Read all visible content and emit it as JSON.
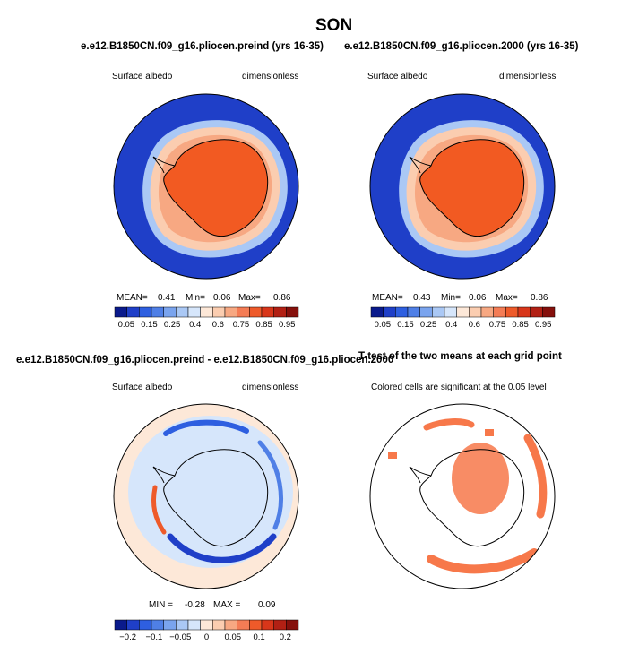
{
  "figure": {
    "title": "SON"
  },
  "panels": {
    "p1": {
      "title": "e.e12.B1850CN.f09_g16.pliocen.preind (yrs 16-35)",
      "left_label": "Surface albedo",
      "right_label": "dimensionless",
      "mean_label": "MEAN=",
      "mean_value": "0.41",
      "min_label": "Min=",
      "min_value": "0.06",
      "max_label": "Max=",
      "max_value": "0.86"
    },
    "p2": {
      "title": "e.e12.B1850CN.f09_g16.pliocen.2000 (yrs 16-35)",
      "left_label": "Surface albedo",
      "right_label": "dimensionless",
      "mean_label": "MEAN=",
      "mean_value": "0.43",
      "min_label": "Min=",
      "min_value": "0.06",
      "max_label": "Max=",
      "max_value": "0.86"
    },
    "p3": {
      "title": "e.e12.B1850CN.f09_g16.pliocen.preind - e.e12.B1850CN.f09_g16.pliocen.2000",
      "left_label": "Surface albedo",
      "right_label": "dimensionless",
      "min_label": "MIN =",
      "min_value": "-0.28",
      "max_label": "MAX =",
      "max_value": "0.09"
    },
    "p4": {
      "title": "T-test of the two means at each grid point",
      "subtitle": "Colored cells are significant at the 0.05 level"
    }
  },
  "colorbars": {
    "abs": {
      "colors": [
        "#0a1a8c",
        "#1f3fc8",
        "#2e5fe0",
        "#4f7fe6",
        "#7aa4ee",
        "#aac8f5",
        "#d6e6fb",
        "#fde8d8",
        "#fbcdb0",
        "#f7a882",
        "#f47c55",
        "#ee5a2a",
        "#d8361a",
        "#b22014",
        "#85100c"
      ],
      "labels": [
        "0.05",
        "0.15",
        "0.25",
        "0.4",
        "0.6",
        "0.75",
        "0.85",
        "0.95"
      ]
    },
    "diff": {
      "colors": [
        "#0a1a8c",
        "#1f3fc8",
        "#2e5fe0",
        "#4f7fe6",
        "#7aa4ee",
        "#aac8f5",
        "#d6e6fb",
        "#fde8d8",
        "#fbcdb0",
        "#f7a882",
        "#f47c55",
        "#ee5a2a",
        "#d8361a",
        "#b22014",
        "#85100c"
      ],
      "labels": [
        "−0.2",
        "−0.1",
        "−0.05",
        "0",
        "0.05",
        "0.1",
        "0.2"
      ]
    }
  },
  "map_colors": {
    "ocean_low": "#1f3fc8",
    "ice_edge": "#aac8f5",
    "sea_ice": "#fbcdb0",
    "land": "#f25a22",
    "diff_bg": "#fde8d8",
    "diff_light": "#d6e6fb",
    "diff_neg": "#2e5fe0",
    "signif": "#f7784a"
  }
}
